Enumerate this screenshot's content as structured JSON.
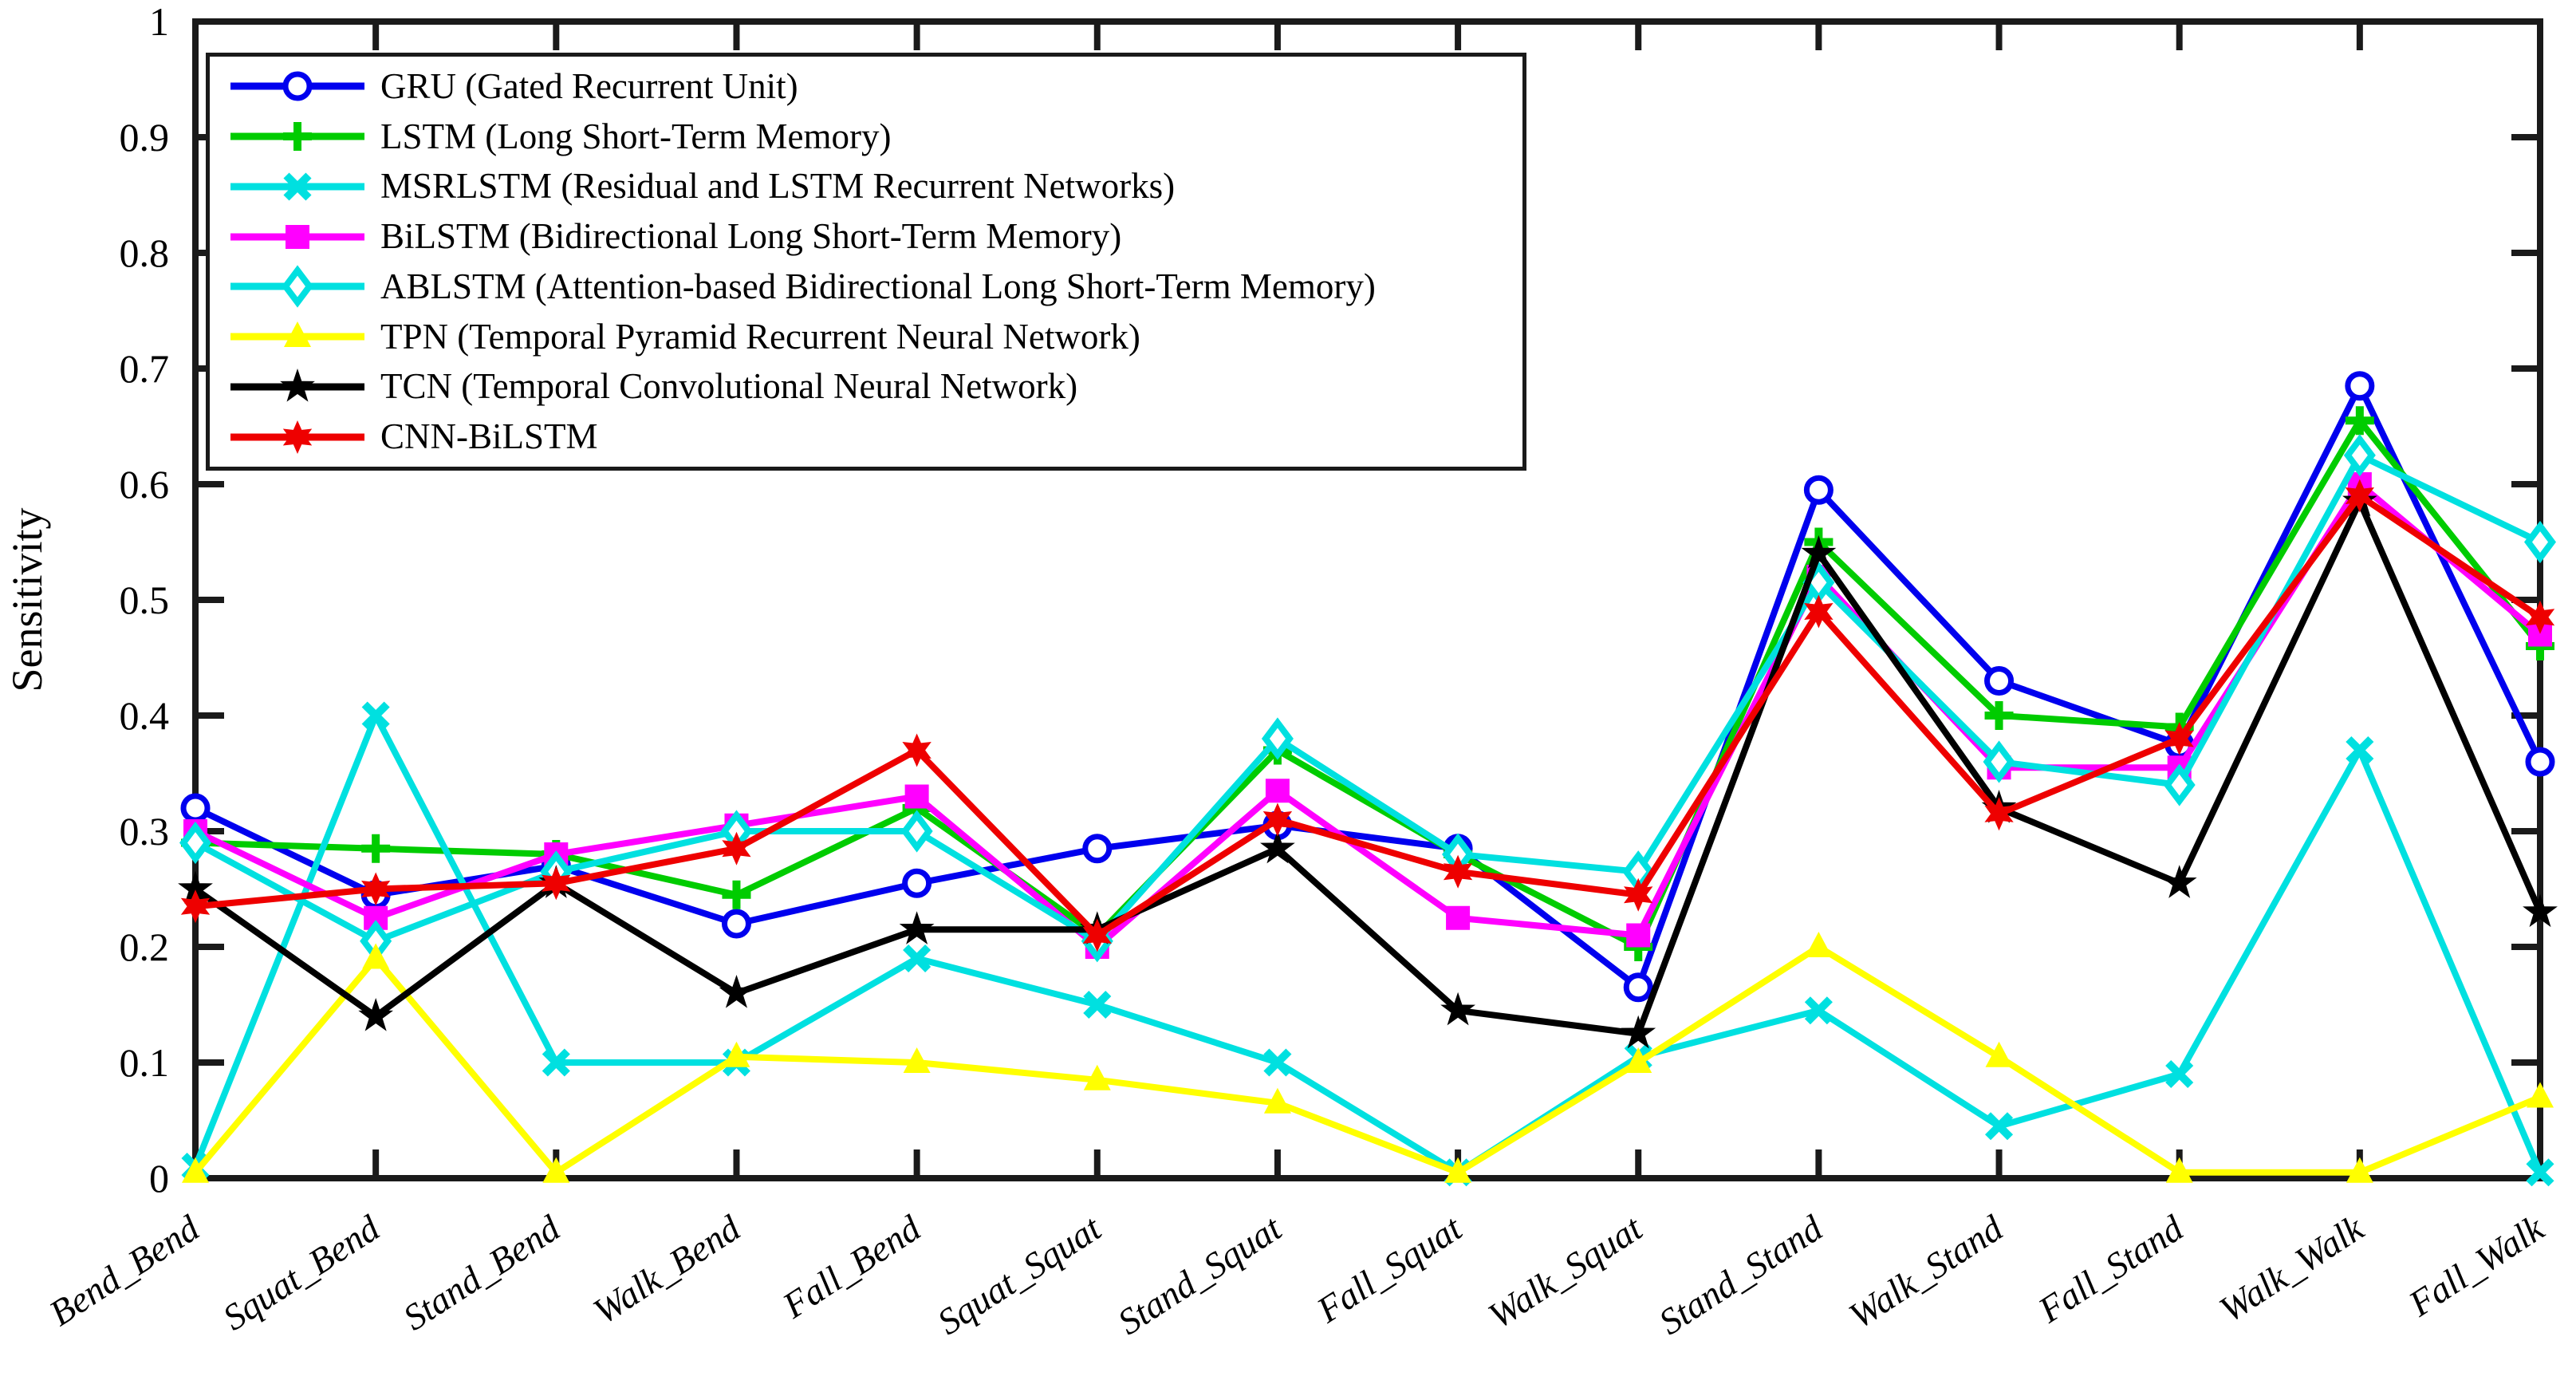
{
  "chart_data": {
    "type": "line",
    "title": "",
    "xlabel": "",
    "ylabel": "Sensitivity",
    "ylim": [
      0,
      1
    ],
    "ytick_labels": [
      "0",
      "0.1",
      "0.2",
      "0.3",
      "0.4",
      "0.5",
      "0.6",
      "0.7",
      "0.8",
      "0.9",
      "1"
    ],
    "grid": false,
    "legend_position": "top-left",
    "categories": [
      "Bend_Bend",
      "Squat_Bend",
      "Stand_Bend",
      "Walk_Bend",
      "Fall_Bend",
      "Squat_Squat",
      "Stand_Squat",
      "Fall_Squat",
      "Walk_Squat",
      "Stand_Stand",
      "Walk_Stand",
      "Fall_Stand",
      "Walk_Walk",
      "Fall_Walk"
    ],
    "series": [
      {
        "name": "GRU (Gated Recurrent Unit)",
        "marker": "circle-open",
        "color": "#0000ee",
        "values": [
          0.32,
          0.245,
          0.27,
          0.22,
          0.255,
          0.285,
          0.305,
          0.285,
          0.165,
          0.595,
          0.43,
          0.375,
          0.685,
          0.36
        ]
      },
      {
        "name": "LSTM (Long Short-Term Memory)",
        "marker": "plus",
        "color": "#00cc00",
        "values": [
          0.29,
          0.285,
          0.28,
          0.245,
          0.32,
          0.21,
          0.37,
          0.28,
          0.2,
          0.55,
          0.4,
          0.39,
          0.655,
          0.46
        ]
      },
      {
        "name": "MSRLSTM (Residual and LSTM Recurrent Networks)",
        "marker": "x",
        "color": "#00e0e0",
        "values": [
          0.01,
          0.4,
          0.1,
          0.1,
          0.19,
          0.15,
          0.1,
          0.005,
          0.105,
          0.145,
          0.045,
          0.09,
          0.37,
          0.005
        ]
      },
      {
        "name": "BiLSTM (Bidirectional Long Short-Term Memory)",
        "marker": "square",
        "color": "#ff00ff",
        "values": [
          0.3,
          0.225,
          0.28,
          0.305,
          0.33,
          0.2,
          0.335,
          0.225,
          0.21,
          0.52,
          0.355,
          0.355,
          0.6,
          0.47
        ]
      },
      {
        "name": "ABLSTM (Attention-based Bidirectional Long Short-Term Memory)",
        "marker": "diamond",
        "color": "#00e0e0",
        "values": [
          0.29,
          0.205,
          0.265,
          0.3,
          0.3,
          0.205,
          0.38,
          0.28,
          0.265,
          0.515,
          0.36,
          0.34,
          0.625,
          0.55
        ]
      },
      {
        "name": "TPN (Temporal Pyramid Recurrent Neural Network)",
        "marker": "triangle",
        "color": "#ffff00",
        "values": [
          0.005,
          0.19,
          0.005,
          0.105,
          0.1,
          0.085,
          0.065,
          0.005,
          0.1,
          0.2,
          0.105,
          0.005,
          0.005,
          0.07
        ]
      },
      {
        "name": "TCN (Temporal Convolutional Neural Network)",
        "marker": "star5",
        "color": "#000000",
        "values": [
          0.25,
          0.14,
          0.255,
          0.16,
          0.215,
          0.215,
          0.285,
          0.145,
          0.125,
          0.54,
          0.32,
          0.255,
          0.585,
          0.23
        ]
      },
      {
        "name": "CNN-BiLSTM",
        "marker": "star6",
        "color": "#ee0000",
        "values": [
          0.235,
          0.25,
          0.255,
          0.285,
          0.37,
          0.21,
          0.31,
          0.265,
          0.245,
          0.49,
          0.315,
          0.38,
          0.59,
          0.485
        ]
      }
    ]
  },
  "style": {
    "axis_color": "#1a1a1a",
    "background_color": "#ffffff",
    "text_color": "#000000"
  }
}
